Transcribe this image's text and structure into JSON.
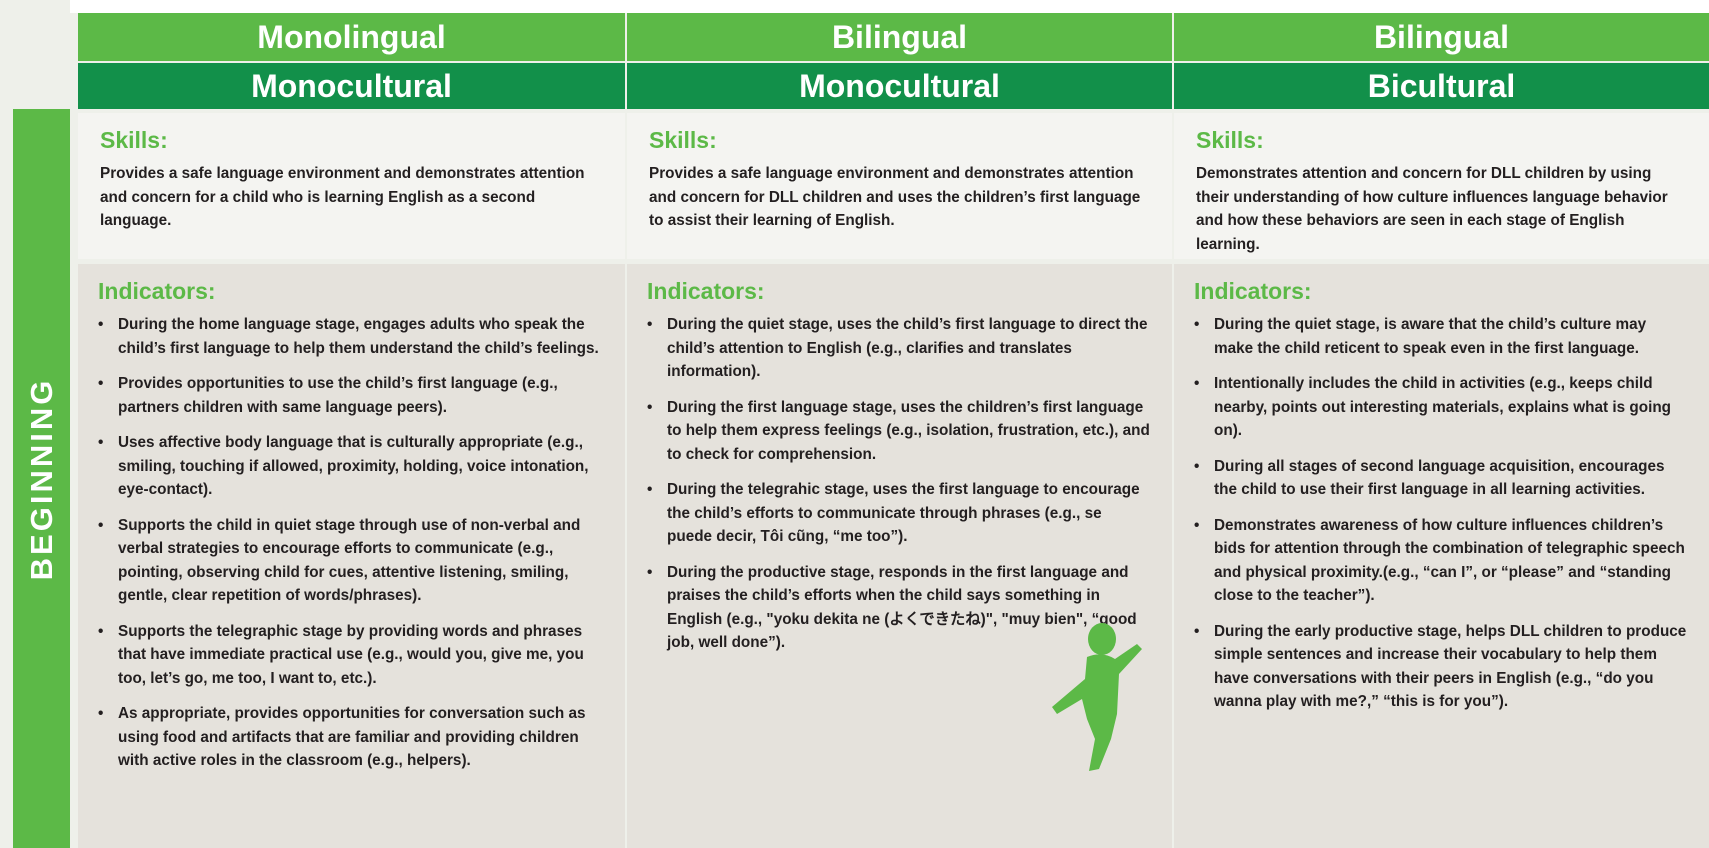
{
  "stage": "BEGINNING",
  "columns": [
    {
      "language": "Monolingual",
      "culture": "Monocultural",
      "skills_label": "Skills:",
      "skills": "Provides a safe language environment and demonstrates attention and concern for a child who is learning English as a second language.",
      "indicators_label": "Indicators:",
      "indicators": [
        "During the home language stage, engages adults who speak the child’s first language to help them understand the child’s feelings.",
        "Provides opportunities to use the child’s first language (e.g., partners children with same language peers).",
        "Uses affective body language that is culturally appropriate (e.g., smiling, touching if allowed, proximity, holding, voice intonation, eye-contact).",
        "Supports the child in quiet stage through use of non-verbal and verbal strategies to encourage efforts to communicate (e.g., pointing, observing child for cues, attentive listening, smiling, gentle, clear repetition of words/phrases).",
        "Supports the telegraphic stage by providing words and phrases that have immediate practical use (e.g., would you, give me, you too, let’s go, me too, I want to, etc.).",
        "As appropriate, provides opportunities for conversation such as using food and artifacts that are familiar and providing children with active roles in the classroom (e.g., helpers)."
      ]
    },
    {
      "language": "Bilingual",
      "culture": "Monocultural",
      "skills_label": "Skills:",
      "skills": "Provides a safe language environment and demonstrates attention and concern for DLL children and uses the children’s first language to assist their learning of English.",
      "indicators_label": "Indicators:",
      "indicators": [
        "During the quiet stage, uses the child’s first language to direct the child’s attention to English (e.g., clarifies and translates information).",
        "During the first language stage, uses the children’s first language to help them express feelings (e.g., isolation, frustration, etc.), and to check for comprehension.",
        "During the telegrahic stage, uses the first language to encourage the child’s efforts to communicate through phrases (e.g., se puede decir, Tôi cũng, “me too”).",
        "During the productive stage, responds in the first language and praises the child’s efforts when the child says something in English (e.g., \"yoku dekita ne (よくできたね)\", \"muy bien\",  “good job, well done”)."
      ]
    },
    {
      "language": "Bilingual",
      "culture": "Bicultural",
      "skills_label": "Skills:",
      "skills": "Demonstrates attention and concern for DLL children by using their understanding of how culture influences language behavior and how these behaviors are seen in each stage of English learning.",
      "indicators_label": "Indicators:",
      "indicators": [
        "During the quiet stage, is aware that the child’s culture may make the child reticent to speak even in the first language.",
        "Intentionally includes the child in activities (e.g., keeps child nearby, points out interesting materials, explains what is going on).",
        "During all stages of second language acquisition, encourages the child to use their  first language in all learning activities.",
        "Demonstrates awareness of how culture influences children’s bids for attention through the combination of telegraphic speech and physical proximity.(e.g., “can I”, or “please” and “standing close to the teacher”).",
        "During the early productive stage, helps DLL children to produce simple sentences and increase their vocabulary to help them have conversations with their peers in English (e.g., “do you wanna play with me?,” “this is for you”)."
      ]
    }
  ]
}
